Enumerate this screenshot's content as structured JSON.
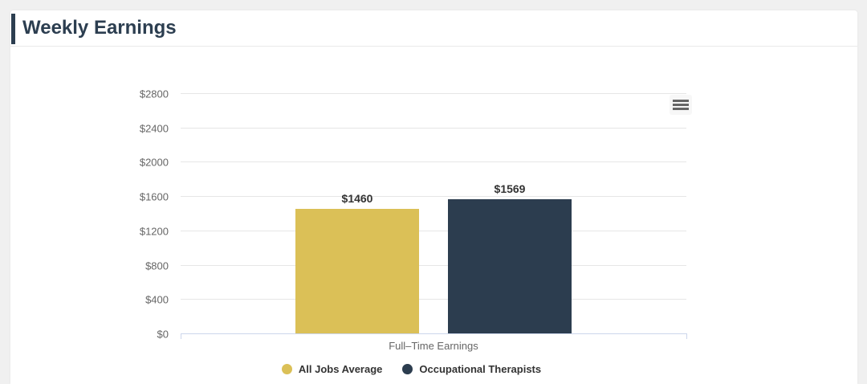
{
  "header": {
    "title": "Weekly Earnings"
  },
  "toolbar": {
    "export_menu_icon": "hamburger-menu"
  },
  "chart_data": {
    "type": "bar",
    "title": "Weekly Earnings",
    "categories": [
      "Full–Time Earnings"
    ],
    "xlabel": "Full–Time Earnings",
    "ylabel": "",
    "ylim": [
      0,
      2800
    ],
    "grid": true,
    "legend_position": "bottom",
    "yticks": [
      {
        "value": 0,
        "label": "$0"
      },
      {
        "value": 400,
        "label": "$400"
      },
      {
        "value": 800,
        "label": "$800"
      },
      {
        "value": 1200,
        "label": "$1200"
      },
      {
        "value": 1600,
        "label": "$1600"
      },
      {
        "value": 2000,
        "label": "$2000"
      },
      {
        "value": 2400,
        "label": "$2400"
      },
      {
        "value": 2800,
        "label": "$2800"
      }
    ],
    "series": [
      {
        "name": "All Jobs Average",
        "values": [
          1460
        ],
        "data_labels": [
          "$1460"
        ],
        "color": "#dbc057"
      },
      {
        "name": "Occupational Therapists",
        "values": [
          1569
        ],
        "data_labels": [
          "$1569"
        ],
        "color": "#2c3d4f"
      }
    ]
  },
  "colors": {
    "accent": "#2c3e50",
    "page_background": "#f0f0f0",
    "panel_background": "#ffffff",
    "grid_line": "#e6e6e6",
    "axis_line": "#ccd6eb",
    "tick_text": "#666666",
    "data_label_text": "#333333"
  }
}
